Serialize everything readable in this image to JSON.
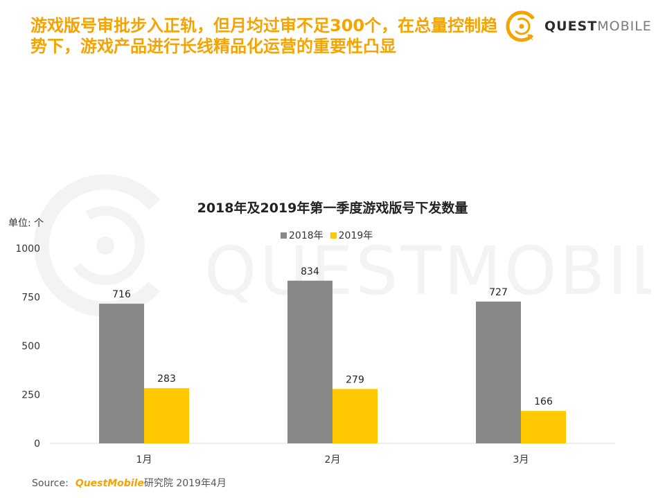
{
  "headline": "游戏版号审批步入正轨，但月均过审不足300个，在总量控制趋势下，游戏产品进行长线精品化运营的重要性凸显",
  "logo": {
    "quest": "QUEST",
    "mobile": "MOBILE",
    "icon": "questmobile-logo-icon"
  },
  "watermark_text": "QUESTMOBILE",
  "unit_label": "单位: 个",
  "source": {
    "prefix": "Source:",
    "brand": "QuestMobile",
    "suffix": "研究院 2019年4月"
  },
  "colors": {
    "accent": "#f5a300",
    "series_2018": "#888888",
    "series_2019": "#ffc800"
  },
  "chart_data": {
    "type": "bar",
    "title": "2018年及2019年第一季度游戏版号下发数量",
    "categories": [
      "1月",
      "2月",
      "3月"
    ],
    "series": [
      {
        "name": "2018年",
        "values": [
          716,
          834,
          727
        ]
      },
      {
        "name": "2019年",
        "values": [
          283,
          279,
          166
        ]
      }
    ],
    "ylim": [
      0,
      1000
    ],
    "yticks": [
      0,
      250,
      500,
      750,
      1000
    ],
    "grid": false,
    "legend_position": "top-center",
    "xlabel": "",
    "ylabel": ""
  }
}
